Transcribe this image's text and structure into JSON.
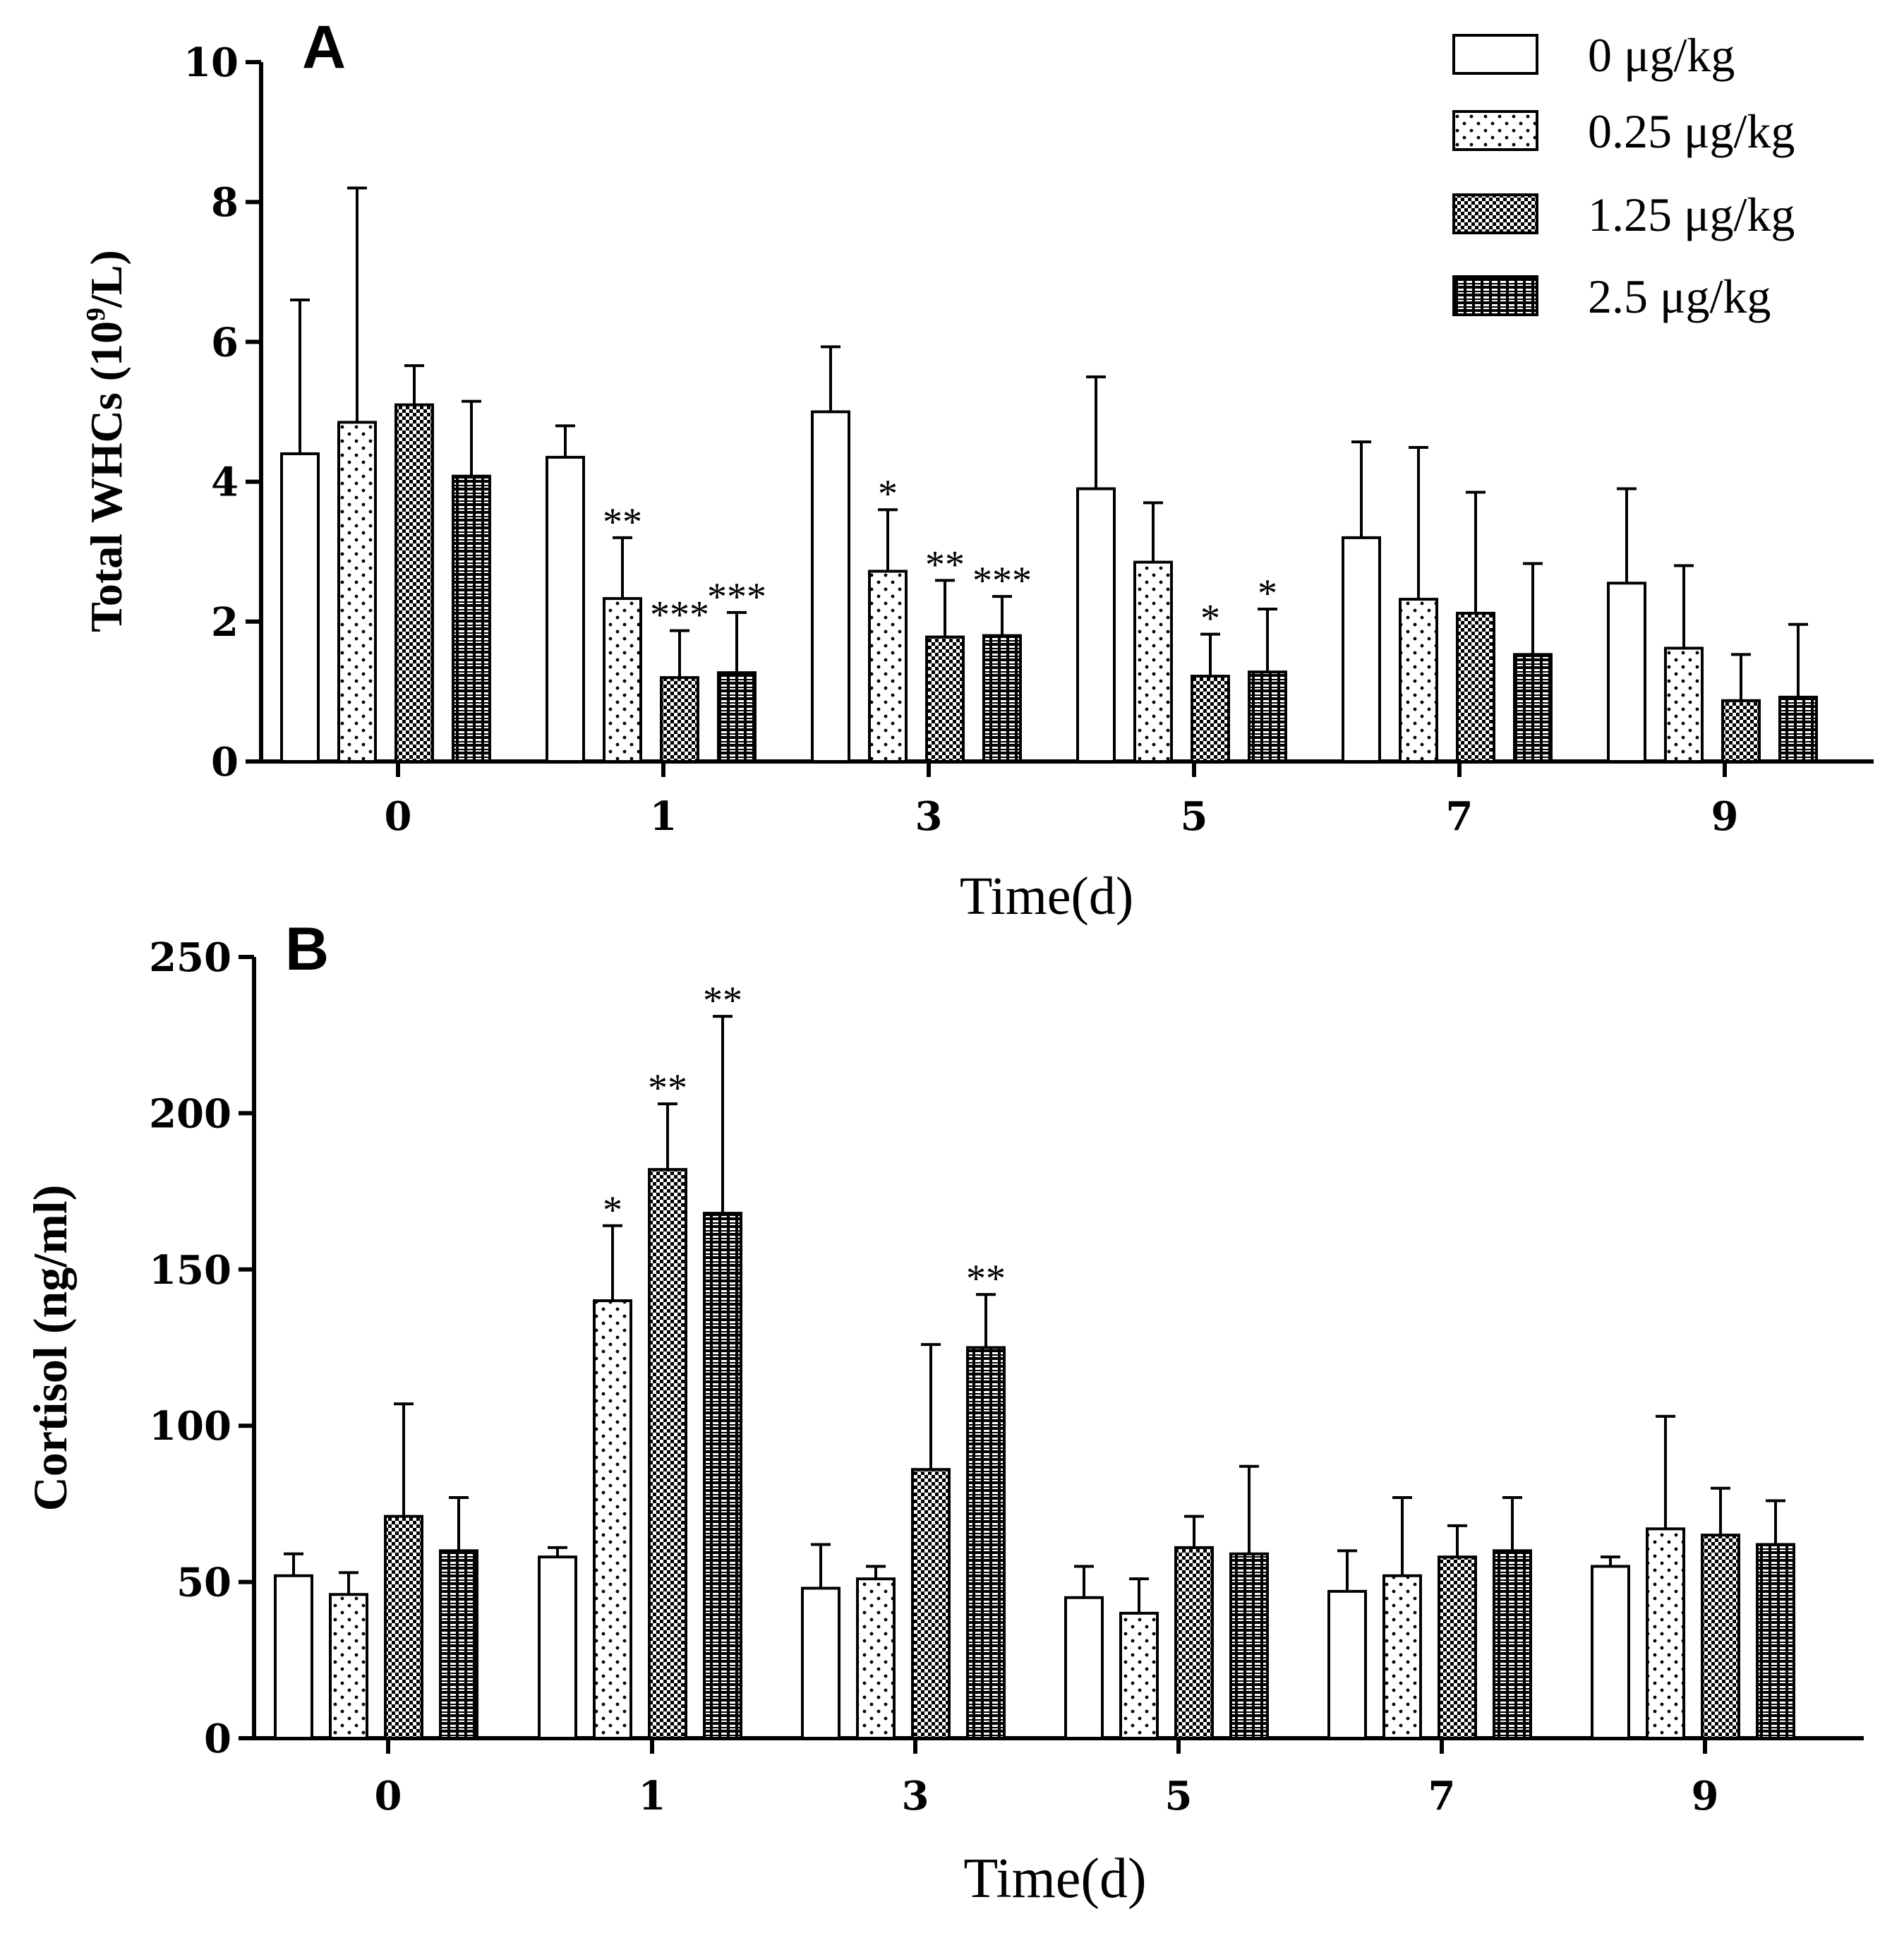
{
  "legend": {
    "entries": [
      "0 μg/kg",
      "0.25 μg/kg",
      "1.25 μg/kg",
      "2.5 μg/kg"
    ],
    "patterns": [
      "open",
      "dots",
      "checker",
      "grid"
    ]
  },
  "chart_data": [
    {
      "type": "bar",
      "panel": "A",
      "title": "",
      "xlabel": "Time(d)",
      "ylabel_main": "Total WHCs (10",
      "ylabel_sup": "9",
      "ylabel_tail": "/L)",
      "ylim": [
        0,
        10
      ],
      "yticks": [
        "0",
        "2",
        "4",
        "6",
        "8",
        "10"
      ],
      "categories": [
        "0",
        "1",
        "3",
        "5",
        "7",
        "9"
      ],
      "series": [
        {
          "name": "0 μg/kg",
          "values": [
            4.4,
            4.35,
            5.0,
            3.9,
            3.2,
            2.55
          ],
          "errors": [
            2.2,
            0.45,
            0.93,
            1.6,
            1.37,
            1.35
          ],
          "sig": [
            "",
            "",
            "",
            "",
            "",
            ""
          ]
        },
        {
          "name": "0.25 μg/kg",
          "values": [
            4.85,
            2.33,
            2.72,
            2.85,
            2.32,
            1.62
          ],
          "errors": [
            3.35,
            0.87,
            0.88,
            0.85,
            2.17,
            1.18
          ],
          "sig": [
            "",
            "**",
            "*",
            "",
            "",
            ""
          ]
        },
        {
          "name": "1.25 μg/kg",
          "values": [
            5.1,
            1.2,
            1.78,
            1.22,
            2.12,
            0.87
          ],
          "errors": [
            0.56,
            0.67,
            0.81,
            0.6,
            1.73,
            0.66
          ],
          "sig": [
            "",
            "***",
            "**",
            "*",
            "",
            ""
          ]
        },
        {
          "name": "2.5 μg/kg",
          "values": [
            4.08,
            1.27,
            1.8,
            1.28,
            1.53,
            0.92
          ],
          "errors": [
            1.07,
            0.86,
            0.56,
            0.9,
            1.3,
            1.04
          ],
          "sig": [
            "",
            "***",
            "***",
            "*",
            "",
            ""
          ]
        }
      ]
    },
    {
      "type": "bar",
      "panel": "B",
      "title": "",
      "xlabel": "Time(d)",
      "ylabel_main": "Cortisol (ng/ml)",
      "ylabel_sup": "",
      "ylabel_tail": "",
      "ylim": [
        0,
        250
      ],
      "yticks": [
        "0",
        "50",
        "100",
        "150",
        "200",
        "250"
      ],
      "categories": [
        "0",
        "1",
        "3",
        "5",
        "7",
        "9"
      ],
      "series": [
        {
          "name": "0 μg/kg",
          "values": [
            52,
            58,
            48,
            45,
            47,
            55
          ],
          "errors": [
            7,
            3,
            14,
            10,
            13,
            3
          ],
          "sig": [
            "",
            "",
            "",
            "",
            "",
            ""
          ]
        },
        {
          "name": "0.25 μg/kg",
          "values": [
            46,
            140,
            51,
            40,
            52,
            67
          ],
          "errors": [
            7,
            24,
            4,
            11,
            25,
            36
          ],
          "sig": [
            "",
            "*",
            "",
            "",
            "",
            ""
          ]
        },
        {
          "name": "1.25 μg/kg",
          "values": [
            71,
            182,
            86,
            61,
            58,
            65
          ],
          "errors": [
            36,
            21,
            40,
            10,
            10,
            15
          ],
          "sig": [
            "",
            "**",
            "",
            "",
            "",
            ""
          ]
        },
        {
          "name": "2.5 μg/kg",
          "values": [
            60,
            168,
            125,
            59,
            60,
            62
          ],
          "errors": [
            17,
            63,
            17,
            28,
            17,
            14
          ],
          "sig": [
            "",
            "**",
            "**",
            "",
            "",
            ""
          ]
        }
      ]
    }
  ]
}
